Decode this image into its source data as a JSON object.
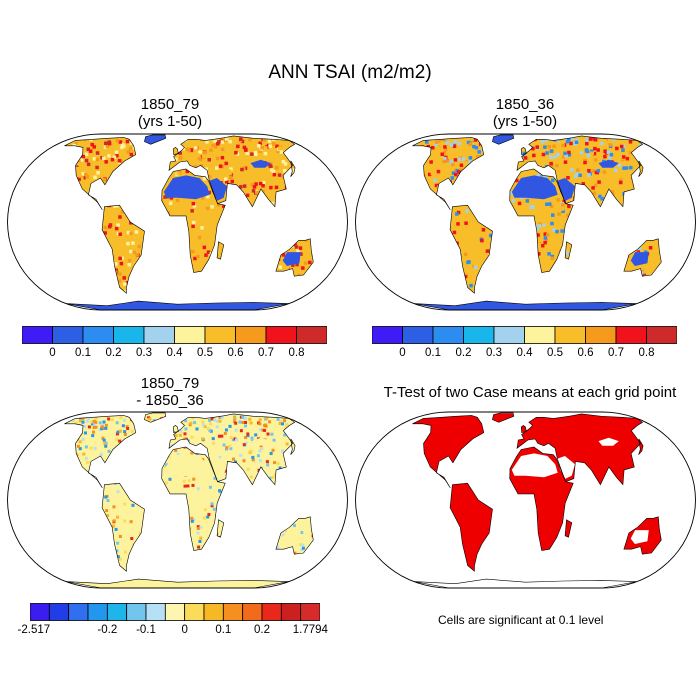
{
  "figure": {
    "title": "ANN TSAI (m2/m2)",
    "note": "Cells are significant at 0.1 level"
  },
  "panels": [
    {
      "id": "case1",
      "title_line1": "1850_79",
      "title_line2": "(yrs 1-50)"
    },
    {
      "id": "case2",
      "title_line1": "1850_36",
      "title_line2": "(yrs 1-50)"
    },
    {
      "id": "diff",
      "title_line1": "1850_79",
      "title_line2": "- 1850_36"
    },
    {
      "id": "ttest",
      "title_line1": "T-Test of two Case means at each grid point",
      "title_line2": ""
    }
  ],
  "colorbars": {
    "absolute": {
      "colors": [
        "#3f1cf5",
        "#2c5fe3",
        "#2c8cf0",
        "#19b6ec",
        "#a2d2ed",
        "#fdf39c",
        "#f8be2a",
        "#f69a1e",
        "#f1131b",
        "#cf2a2a"
      ],
      "labels": [
        "0",
        "0.1",
        "0.2",
        "0.3",
        "0.4",
        "0.5",
        "0.6",
        "0.7",
        "0.8"
      ]
    },
    "difference": {
      "colors": [
        "#3b1df0",
        "#1f3ee8",
        "#2f6ff0",
        "#2396ee",
        "#1fb4ea",
        "#72c6ee",
        "#b6e0f5",
        "#fdf6b0",
        "#fbdc5a",
        "#f6b825",
        "#f59020",
        "#f26a1c",
        "#e9271b",
        "#cc1f1f",
        "#d72a2a"
      ],
      "labels": [
        "-2.517",
        "-0.2",
        "-0.1",
        "0",
        "0.1",
        "0.2",
        "1.7794"
      ]
    }
  },
  "map_colors": {
    "ocean": "#ffffff",
    "coast": "#000000",
    "significant": "#ee0000",
    "antarctica_abs": "#3156e2",
    "desert_abs": "#3156e2",
    "land_high": "#f1131b",
    "land_mid": "#f8be2a",
    "land_low": "#2c8cf0",
    "diff_zero": "#fdf39c"
  }
}
